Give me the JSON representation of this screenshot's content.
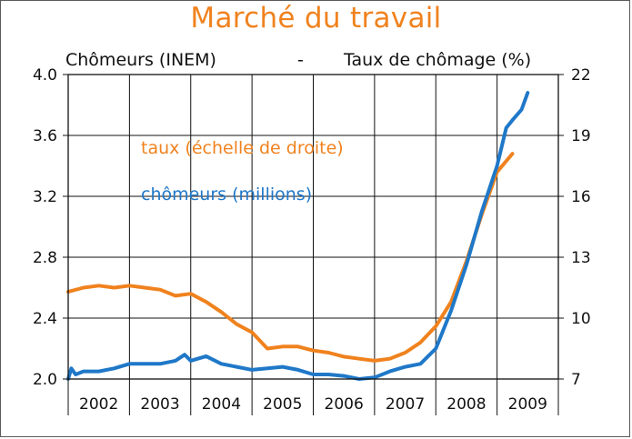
{
  "title": "Marché du travail",
  "left_axis_title": "Chômeurs (INEM)",
  "separator": "-",
  "right_axis_title": "Taux de chômage (%)",
  "colors": {
    "title": "#f0821e",
    "taux": "#f0821e",
    "chomeurs": "#1f78c8",
    "axis": "#111111"
  },
  "chart_data": {
    "type": "line",
    "x_categories": [
      "2002",
      "2003",
      "2004",
      "2005",
      "2006",
      "2007",
      "2008",
      "2009"
    ],
    "xlim": [
      2002,
      2010
    ],
    "left_axis": {
      "ylim": [
        2.0,
        4.0
      ],
      "ticks": [
        "4.0",
        "3.6",
        "3.2",
        "2.8",
        "2.4",
        "2.0"
      ]
    },
    "right_axis": {
      "ylim": [
        7,
        22
      ],
      "ticks": [
        "22",
        "19",
        "16",
        "13",
        "10",
        "7"
      ]
    },
    "grid": true,
    "series": [
      {
        "name": "taux (échelle de droite)",
        "axis": "right",
        "color": "#f0821e",
        "x": [
          2002.0,
          2002.25,
          2002.5,
          2002.75,
          2003.0,
          2003.25,
          2003.5,
          2003.75,
          2004.0,
          2004.25,
          2004.5,
          2004.75,
          2005.0,
          2005.25,
          2005.5,
          2005.75,
          2006.0,
          2006.25,
          2006.5,
          2006.75,
          2007.0,
          2007.25,
          2007.5,
          2007.75,
          2008.0,
          2008.25,
          2008.5,
          2008.75,
          2009.0,
          2009.25
        ],
        "y": [
          11.3,
          11.5,
          11.6,
          11.5,
          11.6,
          11.5,
          11.4,
          11.1,
          11.2,
          10.8,
          10.3,
          9.7,
          9.3,
          8.5,
          8.6,
          8.6,
          8.4,
          8.3,
          8.1,
          8.0,
          7.9,
          8.0,
          8.3,
          8.8,
          9.6,
          10.8,
          12.8,
          15.1,
          17.2,
          18.1
        ]
      },
      {
        "name": "chômeurs (millions)",
        "axis": "left",
        "color": "#1f78c8",
        "x": [
          2002.0,
          2002.05,
          2002.12,
          2002.25,
          2002.5,
          2002.75,
          2003.0,
          2003.25,
          2003.5,
          2003.75,
          2003.9,
          2004.0,
          2004.25,
          2004.5,
          2004.75,
          2005.0,
          2005.25,
          2005.5,
          2005.75,
          2006.0,
          2006.25,
          2006.5,
          2006.75,
          2007.0,
          2007.25,
          2007.5,
          2007.75,
          2008.0,
          2008.25,
          2008.5,
          2008.75,
          2009.0,
          2009.15,
          2009.25,
          2009.4,
          2009.5
        ],
        "y": [
          2.0,
          2.07,
          2.03,
          2.05,
          2.05,
          2.07,
          2.1,
          2.1,
          2.1,
          2.12,
          2.16,
          2.12,
          2.15,
          2.1,
          2.08,
          2.06,
          2.07,
          2.08,
          2.06,
          2.03,
          2.03,
          2.02,
          2.0,
          2.01,
          2.05,
          2.08,
          2.1,
          2.2,
          2.45,
          2.75,
          3.1,
          3.4,
          3.65,
          3.7,
          3.77,
          3.88
        ]
      }
    ]
  }
}
